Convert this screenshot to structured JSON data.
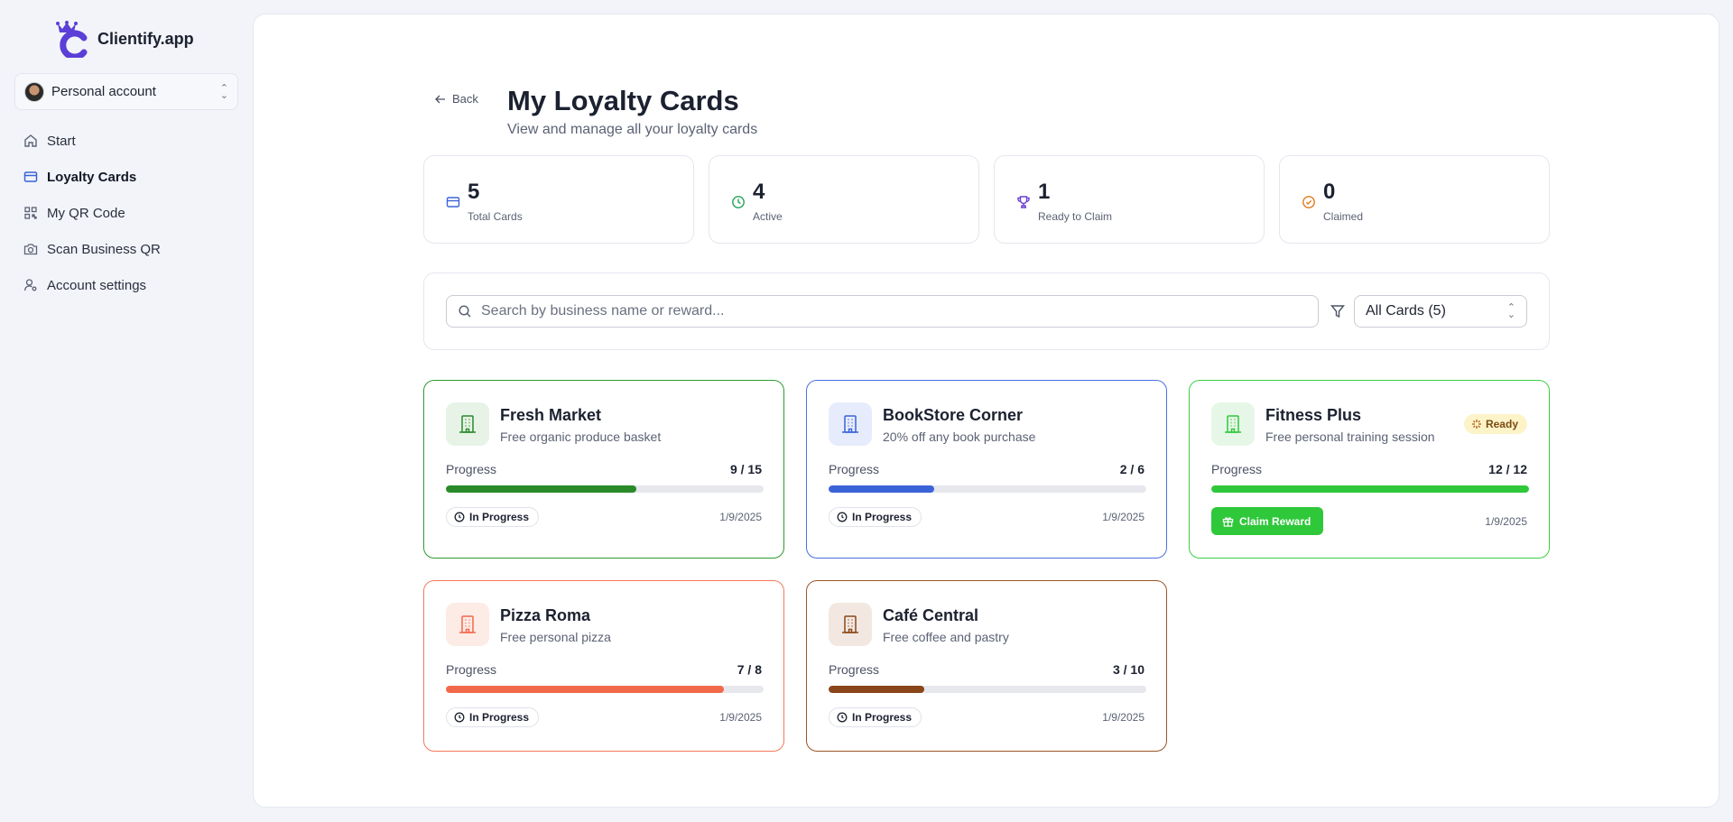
{
  "brand": {
    "name": "Clientify.app"
  },
  "account": {
    "label": "Personal account"
  },
  "nav": [
    {
      "label": "Start",
      "icon": "home-icon"
    },
    {
      "label": "Loyalty Cards",
      "icon": "credit-card-icon",
      "active": true
    },
    {
      "label": "My QR Code",
      "icon": "qr-code-icon"
    },
    {
      "label": "Scan Business QR",
      "icon": "camera-icon"
    },
    {
      "label": "Account settings",
      "icon": "user-settings-icon"
    }
  ],
  "header": {
    "back_label": "Back",
    "title": "My Loyalty Cards",
    "subtitle": "View and manage all your loyalty cards"
  },
  "stats": [
    {
      "value": "5",
      "label": "Total Cards",
      "icon": "credit-card-icon",
      "color": "#3b63d8"
    },
    {
      "value": "4",
      "label": "Active",
      "icon": "clock-icon",
      "color": "#22a35a"
    },
    {
      "value": "1",
      "label": "Ready to Claim",
      "icon": "trophy-icon",
      "color": "#6b3fd4"
    },
    {
      "value": "0",
      "label": "Claimed",
      "icon": "check-circle-icon",
      "color": "#e07b1a"
    }
  ],
  "search": {
    "placeholder": "Search by business name or reward..."
  },
  "filter": {
    "selected": "All Cards (5)"
  },
  "cards": [
    {
      "name": "Fresh Market",
      "reward": "Free organic produce basket",
      "progress_label": "Progress",
      "count": "9 / 15",
      "progress": 0.6,
      "status": "In Progress",
      "date": "1/9/2025",
      "color": "#2a8a2a",
      "border": "#2e9a2e",
      "icon_bg": "#e7f3e7"
    },
    {
      "name": "BookStore Corner",
      "reward": "20% off any book purchase",
      "progress_label": "Progress",
      "count": "2 / 6",
      "progress": 0.3333,
      "status": "In Progress",
      "date": "1/9/2025",
      "color": "#3b63d8",
      "border": "#4a6fe0",
      "icon_bg": "#e6ecfb"
    },
    {
      "name": "Fitness Plus",
      "reward": "Free personal training session",
      "progress_label": "Progress",
      "count": "12 / 12",
      "progress": 1.0,
      "ready_label": "Ready",
      "claim_label": "Claim Reward",
      "date": "1/9/2025",
      "color": "#2fc83a",
      "border": "#3ccf46",
      "icon_bg": "#e6f7e7"
    },
    {
      "name": "Pizza Roma",
      "reward": "Free personal pizza",
      "progress_label": "Progress",
      "count": "7 / 8",
      "progress": 0.875,
      "status": "In Progress",
      "date": "1/9/2025",
      "color": "#f2694a",
      "border": "#f47a5c",
      "icon_bg": "#fdebe6"
    },
    {
      "name": "Café Central",
      "reward": "Free coffee and pastry",
      "progress_label": "Progress",
      "count": "3 / 10",
      "progress": 0.3,
      "status": "In Progress",
      "date": "1/9/2025",
      "color": "#8a4518",
      "border": "#9a5526",
      "icon_bg": "#f2e8e1"
    }
  ]
}
